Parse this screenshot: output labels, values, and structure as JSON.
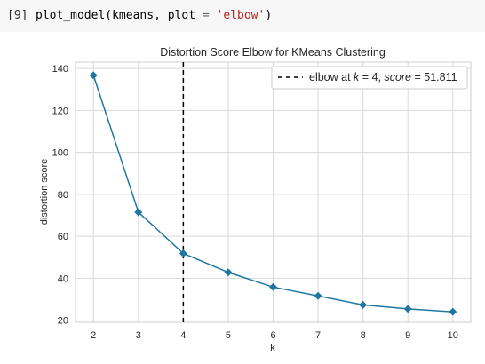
{
  "cell": {
    "prompt": "[9]",
    "code_fn": "plot_model",
    "code_open": "(",
    "code_arg1": "kmeans",
    "code_comma": ", ",
    "code_kw": "plot",
    "code_eq": " = ",
    "code_str": "'elbow'",
    "code_close": ")"
  },
  "colors": {
    "series": "#1f77a0",
    "grid": "#d9d9d9",
    "elbow_line": "#000000"
  },
  "chart_data": {
    "type": "line",
    "title": "Distortion Score Elbow for KMeans Clustering",
    "xlabel": "k",
    "ylabel": "distortion score",
    "x": [
      2,
      3,
      4,
      5,
      6,
      7,
      8,
      9,
      10
    ],
    "xticks": [
      "2",
      "3",
      "4",
      "5",
      "6",
      "7",
      "8",
      "9",
      "10"
    ],
    "yticks": [
      20,
      40,
      60,
      80,
      100,
      120,
      140
    ],
    "ytick_labels": [
      "20",
      "40",
      "60",
      "80",
      "100",
      "120",
      "140"
    ],
    "xlim": [
      1.6,
      10.4
    ],
    "ylim": [
      19,
      143
    ],
    "series": [
      {
        "values": [
          136.7,
          71.5,
          51.8,
          42.8,
          35.8,
          31.6,
          27.3,
          25.4,
          24.0
        ],
        "marker": "diamond"
      }
    ],
    "elbow": {
      "k": 4,
      "score": 51.811
    },
    "legend": {
      "text_prefix": "elbow at ",
      "k_sym": "k",
      "eq1": " = 4, ",
      "score_sym": "score",
      "eq2": " = 51.811",
      "placement": "top-right"
    },
    "grid": true
  }
}
